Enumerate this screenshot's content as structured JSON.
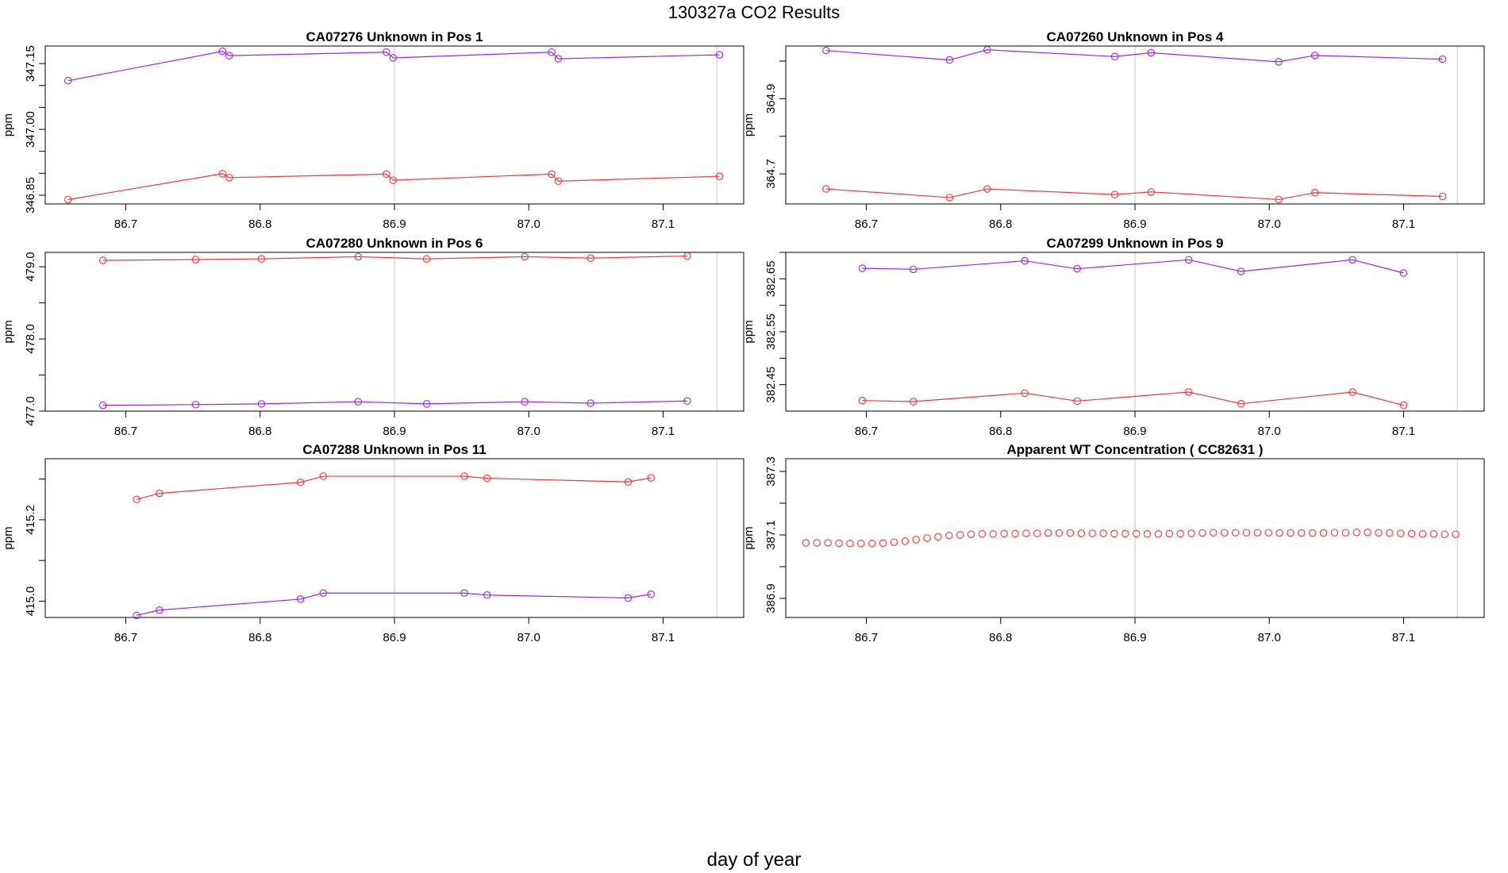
{
  "title": "130327a  CO2 Results",
  "xlabel": "day of year",
  "colors": {
    "series_a": "#ff3030",
    "series_b": "#a020f0",
    "frame": "#000000",
    "refline": "#c8c8c8"
  },
  "chart_data": [
    {
      "type": "line",
      "title": "CA07276    Unknown in Pos 1",
      "xlabel": "",
      "ylabel": "ppm",
      "xlim": [
        86.64,
        87.16
      ],
      "ylim": [
        346.83,
        347.19
      ],
      "xticks": [
        86.7,
        86.8,
        86.9,
        87.0,
        87.1
      ],
      "xtick_labels": [
        "86.7",
        "86.8",
        "86.9",
        "87.0",
        "87.1"
      ],
      "yticks": [
        346.85,
        347.0,
        347.15
      ],
      "ytick_labels": [
        "346.85",
        "347.00",
        "347.15"
      ],
      "ytick_minor": [
        346.9,
        346.95,
        347.05,
        347.1
      ],
      "vlines": [
        86.9,
        87.14
      ],
      "series": [
        {
          "name": "purple",
          "color": "#a020f0",
          "x": [
            86.657,
            86.772,
            86.777,
            86.894,
            86.899,
            87.017,
            87.022,
            87.142
          ],
          "y": [
            347.111,
            347.178,
            347.168,
            347.176,
            347.163,
            347.176,
            347.161,
            347.17
          ]
        },
        {
          "name": "red",
          "color": "#ff3030",
          "x": [
            86.657,
            86.772,
            86.777,
            86.894,
            86.899,
            87.017,
            87.022,
            87.142
          ],
          "y": [
            346.84,
            346.899,
            346.89,
            346.898,
            346.884,
            346.898,
            346.882,
            346.893
          ]
        }
      ]
    },
    {
      "type": "line",
      "title": "CA07260    Unknown in Pos 4",
      "xlabel": "",
      "ylabel": "ppm",
      "xlim": [
        86.64,
        87.16
      ],
      "ylim": [
        364.62,
        365.04
      ],
      "xticks": [
        86.7,
        86.8,
        86.9,
        87.0,
        87.1
      ],
      "xtick_labels": [
        "86.7",
        "86.8",
        "86.9",
        "87.0",
        "87.1"
      ],
      "yticks": [
        364.7,
        364.9
      ],
      "ytick_labels": [
        "364.7",
        "364.9"
      ],
      "ytick_minor": [
        364.8,
        365.0
      ],
      "vlines": [
        86.9,
        87.14
      ],
      "series": [
        {
          "name": "purple",
          "color": "#a020f0",
          "x": [
            86.67,
            86.762,
            86.79,
            86.885,
            86.912,
            87.007,
            87.034,
            87.129
          ],
          "y": [
            365.028,
            365.003,
            365.03,
            365.012,
            365.022,
            364.998,
            365.015,
            365.005
          ]
        },
        {
          "name": "red",
          "color": "#ff3030",
          "x": [
            86.67,
            86.762,
            86.79,
            86.885,
            86.912,
            87.007,
            87.034,
            87.129
          ],
          "y": [
            364.66,
            364.637,
            364.66,
            364.645,
            364.652,
            364.632,
            364.65,
            364.64
          ]
        }
      ]
    },
    {
      "type": "line",
      "title": "CA07280    Unknown in Pos 6",
      "xlabel": "",
      "ylabel": "ppm",
      "xlim": [
        86.64,
        87.16
      ],
      "ylim": [
        477.0,
        479.2
      ],
      "xticks": [
        86.7,
        86.8,
        86.9,
        87.0,
        87.1
      ],
      "xtick_labels": [
        "86.7",
        "86.8",
        "86.9",
        "87.0",
        "87.1"
      ],
      "yticks": [
        477.0,
        478.0,
        479.0
      ],
      "ytick_labels": [
        "477.0",
        "478.0",
        "479.0"
      ],
      "ytick_minor": [
        477.5,
        478.5
      ],
      "vlines": [
        86.9,
        87.14
      ],
      "series": [
        {
          "name": "red",
          "color": "#ff3030",
          "x": [
            86.683,
            86.752,
            86.801,
            86.873,
            86.924,
            86.997,
            87.046,
            87.118
          ],
          "y": [
            479.09,
            479.1,
            479.11,
            479.14,
            479.11,
            479.14,
            479.12,
            479.15
          ]
        },
        {
          "name": "purple",
          "color": "#a020f0",
          "x": [
            86.683,
            86.752,
            86.801,
            86.873,
            86.924,
            86.997,
            87.046,
            87.118
          ],
          "y": [
            477.08,
            477.09,
            477.1,
            477.13,
            477.1,
            477.13,
            477.11,
            477.14
          ]
        }
      ]
    },
    {
      "type": "line",
      "title": "CA07299    Unknown in Pos 9",
      "xlabel": "",
      "ylabel": "ppm",
      "xlim": [
        86.64,
        87.16
      ],
      "ylim": [
        382.4,
        382.7
      ],
      "xticks": [
        86.7,
        86.8,
        86.9,
        87.0,
        87.1
      ],
      "xtick_labels": [
        "86.7",
        "86.8",
        "86.9",
        "87.0",
        "87.1"
      ],
      "yticks": [
        382.45,
        382.55,
        382.65
      ],
      "ytick_labels": [
        "382.45",
        "382.55",
        "382.65"
      ],
      "ytick_minor": [
        382.5,
        382.6,
        382.7
      ],
      "vlines": [
        86.9,
        87.14
      ],
      "series": [
        {
          "name": "purple",
          "color": "#a020f0",
          "x": [
            86.697,
            86.735,
            86.818,
            86.857,
            86.94,
            86.979,
            87.062,
            87.1
          ],
          "y": [
            382.67,
            382.668,
            382.684,
            382.669,
            382.686,
            382.664,
            382.686,
            382.661
          ]
        },
        {
          "name": "red",
          "color": "#ff3030",
          "x": [
            86.697,
            86.735,
            86.818,
            86.857,
            86.94,
            86.979,
            87.062,
            87.1
          ],
          "y": [
            382.42,
            382.418,
            382.434,
            382.419,
            382.436,
            382.414,
            382.436,
            382.411
          ]
        }
      ]
    },
    {
      "type": "line",
      "title": "CA07288    Unknown in Pos 11",
      "xlabel": "",
      "ylabel": "ppm",
      "xlim": [
        86.64,
        87.16
      ],
      "ylim": [
        414.96,
        415.35
      ],
      "xticks": [
        86.7,
        86.8,
        86.9,
        87.0,
        87.1
      ],
      "xtick_labels": [
        "86.7",
        "86.8",
        "86.9",
        "87.0",
        "87.1"
      ],
      "yticks": [
        415.0,
        415.2
      ],
      "ytick_labels": [
        "415.0",
        "415.2"
      ],
      "ytick_minor": [
        415.1,
        415.3
      ],
      "vlines": [
        86.9,
        87.14
      ],
      "series": [
        {
          "name": "red",
          "color": "#ff3030",
          "x": [
            86.708,
            86.725,
            86.83,
            86.847,
            86.952,
            86.969,
            87.074,
            87.091
          ],
          "y": [
            415.25,
            415.265,
            415.292,
            415.307,
            415.307,
            415.302,
            415.293,
            415.303
          ]
        },
        {
          "name": "purple",
          "color": "#a020f0",
          "x": [
            86.708,
            86.725,
            86.83,
            86.847,
            86.952,
            86.969,
            87.074,
            87.091
          ],
          "y": [
            414.965,
            414.978,
            415.005,
            415.02,
            415.02,
            415.015,
            415.008,
            415.017
          ]
        }
      ]
    },
    {
      "type": "scatter",
      "title": "Apparent WT Concentration ( CC82631 )",
      "xlabel": "",
      "ylabel": "ppm",
      "xlim": [
        86.64,
        87.16
      ],
      "ylim": [
        386.84,
        387.34
      ],
      "xticks": [
        86.7,
        86.8,
        86.9,
        87.0,
        87.1
      ],
      "xtick_labels": [
        "86.7",
        "86.8",
        "86.9",
        "87.0",
        "87.1"
      ],
      "yticks": [
        386.9,
        387.1,
        387.3
      ],
      "ytick_labels": [
        "386.9",
        "387.1",
        "387.3"
      ],
      "ytick_minor": [
        387.0,
        387.2
      ],
      "vlines": [
        86.9,
        87.14
      ],
      "series": [
        {
          "name": "WT",
          "color": "#ff3030",
          "markers_only": true,
          "x_start": 86.655,
          "x_step": 0.0082,
          "count": 60,
          "y": [
            387.075,
            387.075,
            387.075,
            387.074,
            387.073,
            387.073,
            387.073,
            387.074,
            387.077,
            387.08,
            387.085,
            387.09,
            387.094,
            387.098,
            387.1,
            387.102,
            387.103,
            387.103,
            387.104,
            387.104,
            387.105,
            387.105,
            387.106,
            387.106,
            387.106,
            387.105,
            387.105,
            387.105,
            387.104,
            387.104,
            387.104,
            387.103,
            387.103,
            387.104,
            387.104,
            387.105,
            387.106,
            387.107,
            387.107,
            387.107,
            387.107,
            387.107,
            387.107,
            387.106,
            387.106,
            387.106,
            387.106,
            387.106,
            387.107,
            387.107,
            387.108,
            387.108,
            387.107,
            387.106,
            387.105,
            387.104,
            387.103,
            387.103,
            387.102,
            387.102
          ]
        }
      ]
    }
  ]
}
